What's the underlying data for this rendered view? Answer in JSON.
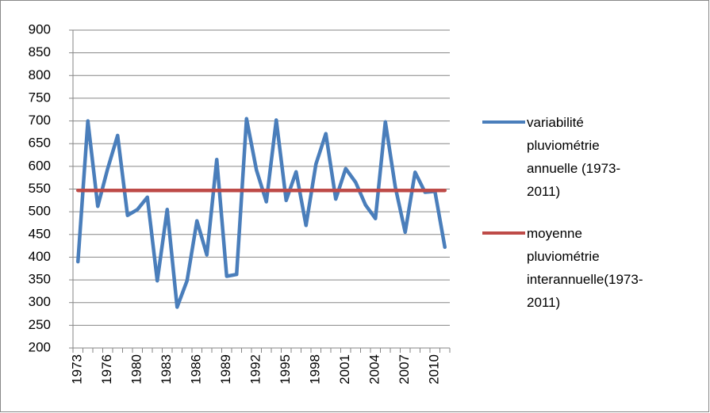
{
  "chart_data": {
    "type": "line",
    "categories": [
      "1973",
      null,
      null,
      "1976",
      null,
      null,
      "1980",
      null,
      null,
      "1983",
      null,
      null,
      "1986",
      null,
      null,
      "1989",
      null,
      null,
      "1992",
      null,
      null,
      "1995",
      null,
      null,
      "1998",
      null,
      null,
      "2001",
      null,
      null,
      "2004",
      null,
      null,
      "2007",
      null,
      null,
      "2010",
      null
    ],
    "series": [
      {
        "name": "variabilité pluviométrie annuelle (1973-2011)",
        "color": "#4a7ebb",
        "values": [
          390,
          700,
          512,
          595,
          668,
          492,
          505,
          532,
          348,
          505,
          290,
          348,
          480,
          405,
          615,
          358,
          362,
          705,
          592,
          522,
          702,
          525,
          588,
          470,
          605,
          672,
          528,
          595,
          565,
          515,
          485,
          698,
          555,
          455,
          587,
          543,
          545,
          422
        ]
      },
      {
        "name": "moyenne pluviométrie interannuelle(1973-2011)",
        "color": "#be4b48",
        "values": [
          547,
          547,
          547,
          547,
          547,
          547,
          547,
          547,
          547,
          547,
          547,
          547,
          547,
          547,
          547,
          547,
          547,
          547,
          547,
          547,
          547,
          547,
          547,
          547,
          547,
          547,
          547,
          547,
          547,
          547,
          547,
          547,
          547,
          547,
          547,
          547,
          547,
          547
        ]
      }
    ],
    "ylim": [
      200,
      900
    ],
    "yticks": [
      200,
      250,
      300,
      350,
      400,
      450,
      500,
      550,
      600,
      650,
      700,
      750,
      800,
      850,
      900
    ],
    "grid": true,
    "legend": "right"
  }
}
